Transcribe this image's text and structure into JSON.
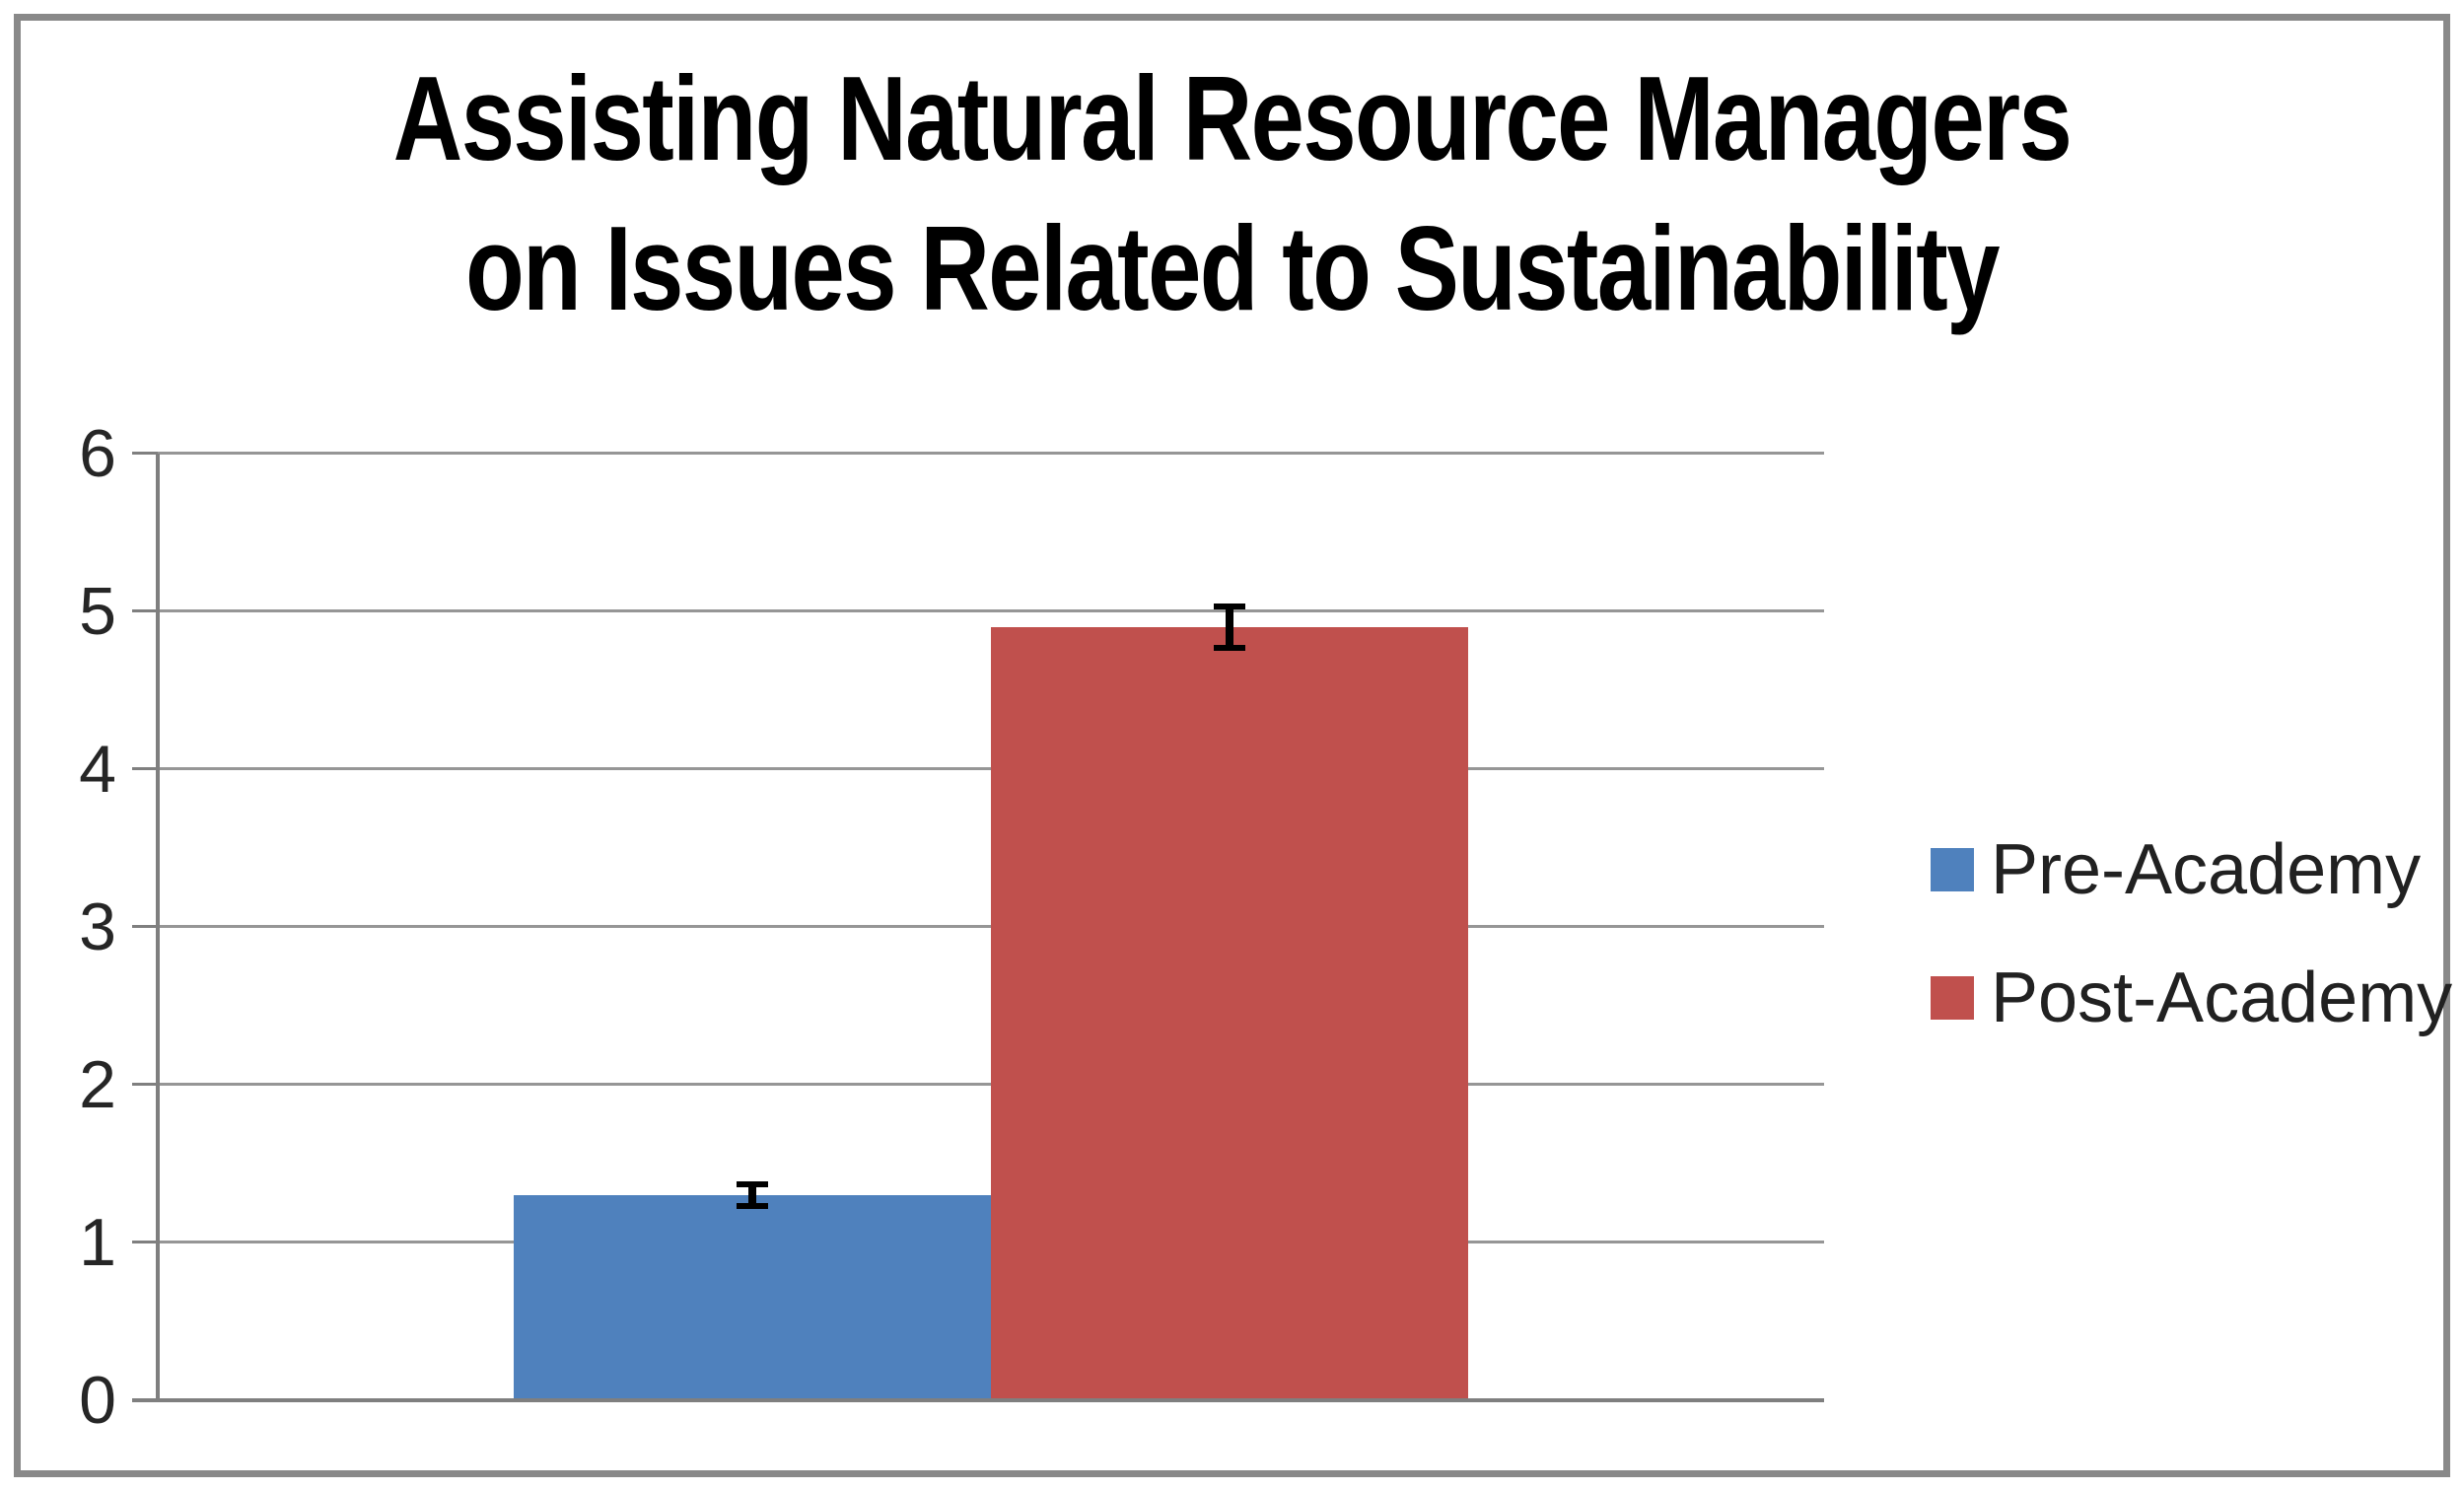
{
  "chart_data": {
    "type": "bar",
    "title": "Assisting Natural Resource Managers on Issues Related to Sustainability",
    "title_lines": [
      "Assisting Natural Resource Managers",
      "on Issues Related to Sustainability"
    ],
    "categories": [
      ""
    ],
    "series": [
      {
        "name": "Pre-Academy",
        "color": "#4F81BD",
        "values": [
          1.3
        ],
        "error": [
          0.09
        ]
      },
      {
        "name": "Post-Academy",
        "color": "#C0504D",
        "values": [
          4.9
        ],
        "error": [
          0.15
        ]
      }
    ],
    "xlabel": "",
    "ylabel": "",
    "ylim": [
      0,
      6
    ],
    "yticks": [
      0,
      1,
      2,
      3,
      4,
      5,
      6
    ],
    "grid": true,
    "legend_position": "right",
    "style": {
      "grid_color": "#969696",
      "axis_color": "#7f7f7f",
      "frame_color": "#898989",
      "error_bar_color": "#000000",
      "tick_label_color": "#262626",
      "legend_text_color": "#212121",
      "background": "#ffffff"
    }
  }
}
